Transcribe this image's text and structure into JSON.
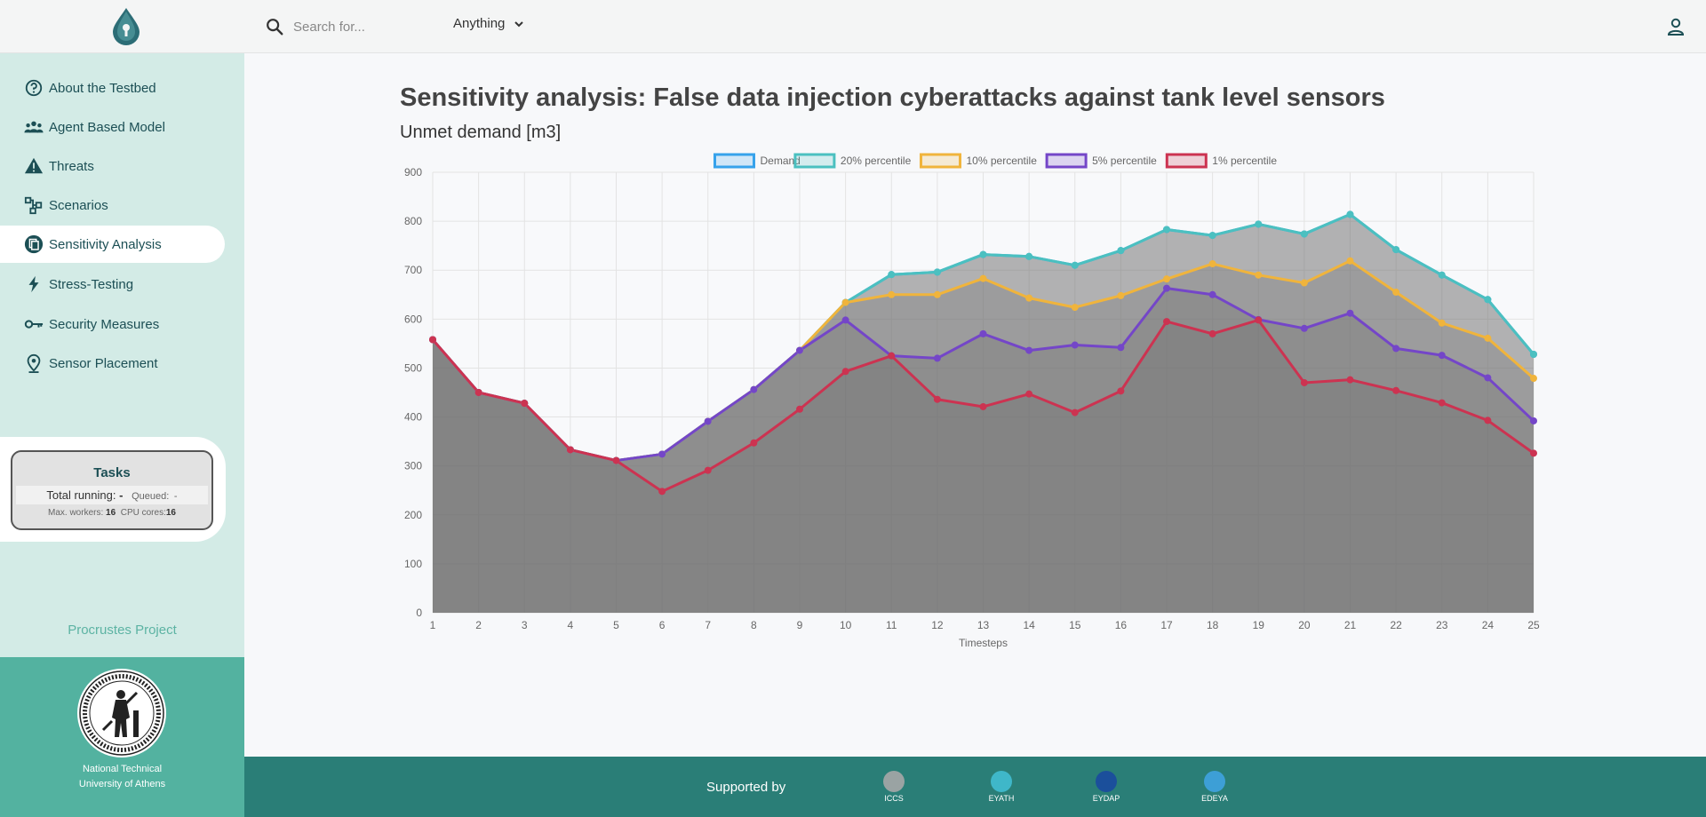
{
  "header": {
    "search_placeholder": "Search for...",
    "select_value": "Anything",
    "icons": [
      "drop-logo-icon",
      "search-icon",
      "chevron-down-icon",
      "user-icon"
    ]
  },
  "sidebar": {
    "items": [
      {
        "label": "About the Testbed",
        "icon": "question-circle-icon"
      },
      {
        "label": "Agent Based Model",
        "icon": "users-icon"
      },
      {
        "label": "Threats",
        "icon": "warning-icon"
      },
      {
        "label": "Scenarios",
        "icon": "flow-diagram-icon"
      },
      {
        "label": "Sensitivity Analysis",
        "icon": "copy-icon"
      },
      {
        "label": "Stress-Testing",
        "icon": "bolt-icon"
      },
      {
        "label": "Security Measures",
        "icon": "key-icon"
      },
      {
        "label": "Sensor Placement",
        "icon": "location-pin-icon"
      }
    ],
    "active_index": 4,
    "tasks": {
      "title": "Tasks",
      "running_label": "Total running:",
      "running_value": "-",
      "queued_label": "Queued:",
      "queued_value": "-",
      "workers_label": "Max. workers:",
      "workers_value": "16",
      "cores_label": "CPU cores:",
      "cores_value": "16"
    },
    "project_label": "Procrustes Project",
    "university_line1": "National Technical",
    "university_line2": "University of Athens"
  },
  "main": {
    "title": "Sensitivity analysis: False data injection cyberattacks against tank level sensors",
    "subtitle": "Unmet demand [m3]"
  },
  "footer": {
    "supported_label": "Supported by",
    "sponsors": [
      {
        "name": "ICCS",
        "color": "#9aa3a3"
      },
      {
        "name": "EYATH",
        "color": "#3fb7c9"
      },
      {
        "name": "EYDAP",
        "color": "#1b4f9b"
      },
      {
        "name": "EDEYA",
        "color": "#3d9fd6"
      }
    ]
  },
  "chart_data": {
    "type": "area",
    "x": [
      1,
      2,
      3,
      4,
      5,
      6,
      7,
      8,
      9,
      10,
      11,
      12,
      13,
      14,
      15,
      16,
      17,
      18,
      19,
      20,
      21,
      22,
      23,
      24,
      25
    ],
    "xlabel": "Timesteps",
    "ylabel": "",
    "ylim": [
      0,
      900
    ],
    "yticks": [
      0,
      100,
      200,
      300,
      400,
      500,
      600,
      700,
      800,
      900
    ],
    "grid": true,
    "legend_position": "top",
    "series": [
      {
        "name": "Demand",
        "color": "#36a2eb",
        "values": [
          558,
          450,
          428,
          333,
          311,
          324,
          391,
          456,
          536,
          634,
          691,
          696,
          732,
          728,
          710,
          740,
          783,
          771,
          794,
          774,
          814,
          742,
          690,
          640,
          528
        ]
      },
      {
        "name": "20% percentile",
        "color": "#4bc0c0",
        "values": [
          558,
          450,
          428,
          333,
          311,
          324,
          391,
          456,
          536,
          634,
          691,
          696,
          732,
          728,
          710,
          740,
          783,
          771,
          794,
          774,
          814,
          742,
          690,
          640,
          528
        ]
      },
      {
        "name": "10% percentile",
        "color": "#f0b43c",
        "values": [
          558,
          450,
          428,
          333,
          311,
          324,
          391,
          456,
          536,
          634,
          650,
          650,
          683,
          643,
          624,
          648,
          682,
          713,
          690,
          674,
          719,
          655,
          592,
          561,
          479
        ]
      },
      {
        "name": "5% percentile",
        "color": "#7446c8",
        "values": [
          558,
          450,
          428,
          333,
          311,
          324,
          391,
          456,
          536,
          598,
          525,
          520,
          570,
          536,
          547,
          542,
          663,
          650,
          599,
          581,
          612,
          540,
          526,
          480,
          392
        ]
      },
      {
        "name": "1% percentile",
        "color": "#cc3351",
        "values": [
          558,
          450,
          428,
          333,
          311,
          248,
          291,
          347,
          416,
          493,
          525,
          436,
          421,
          447,
          409,
          453,
          595,
          570,
          598,
          470,
          476,
          454,
          429,
          393,
          326
        ]
      }
    ]
  }
}
